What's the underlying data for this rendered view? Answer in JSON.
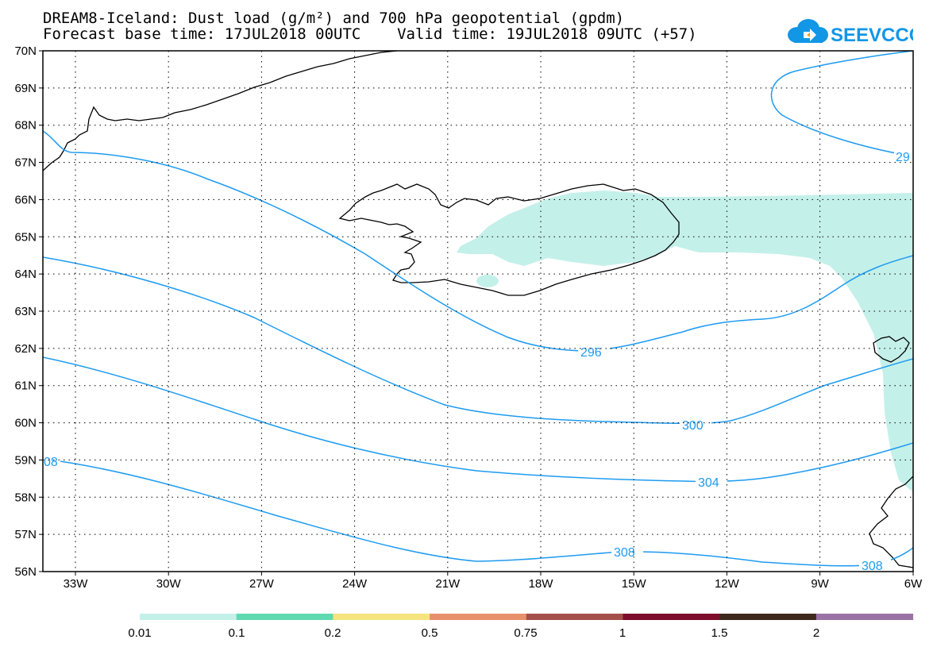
{
  "title_line1": "DREAM8-Iceland: Dust load (g/m²) and 700 hPa geopotential (gpdm)",
  "title_line2": "Forecast base time: 17JUL2018 00UTC    Valid time: 19JUL2018 09UTC (+57)",
  "logo_text": "SEEVCCC",
  "lat_labels": [
    "70N",
    "69N",
    "68N",
    "67N",
    "66N",
    "65N",
    "64N",
    "63N",
    "62N",
    "61N",
    "60N",
    "59N",
    "58N",
    "57N",
    "56N"
  ],
  "lon_labels": [
    "33W",
    "30W",
    "27W",
    "24W",
    "21W",
    "18W",
    "15W",
    "12W",
    "9W",
    "6W"
  ],
  "contour_labels": [
    "296",
    "300",
    "304",
    "308",
    "308",
    "08",
    "29"
  ],
  "legend": {
    "values": [
      "0.01",
      "0.1",
      "0.2",
      "0.5",
      "0.75",
      "1",
      "1.5",
      "2"
    ],
    "colors": [
      "#c4f0ea",
      "#5fd9b0",
      "#f6e47f",
      "#e8906c",
      "#a4504a",
      "#7e0d2d",
      "#3e2a1c",
      "#9b72a6"
    ]
  },
  "colors": {
    "dust": "#c4f0ea",
    "contour": "#1d9bf0",
    "coast": "#000000",
    "logo": "#1296e6"
  }
}
